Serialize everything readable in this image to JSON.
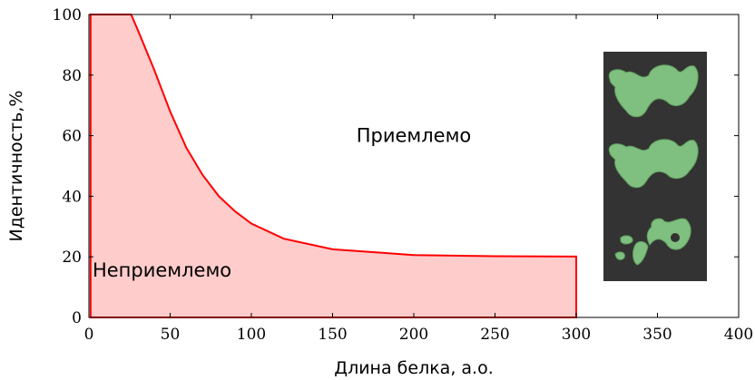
{
  "chart_data": {
    "type": "area",
    "title": "",
    "xlabel": "Длина белка, а.о.",
    "ylabel": "Идентичность,%",
    "xlim": [
      0,
      400
    ],
    "ylim": [
      0,
      100
    ],
    "xticks": [
      0,
      50,
      100,
      150,
      200,
      250,
      300,
      350,
      400
    ],
    "yticks": [
      0,
      20,
      40,
      60,
      80,
      100
    ],
    "grid": false,
    "series": [
      {
        "x": [
          1,
          26,
          30,
          40,
          50,
          60,
          70,
          80,
          90,
          100,
          120,
          150,
          200,
          250,
          300,
          300,
          1
        ],
        "y": [
          100,
          100,
          95,
          82,
          68,
          56,
          47,
          40,
          35,
          31,
          26,
          22.5,
          20.6,
          20.2,
          20.1,
          0,
          0
        ],
        "color": "#ff0000",
        "fill": "#ffcccc"
      }
    ],
    "annotations": [
      {
        "text": "Приемлемо",
        "x": 200,
        "y": 60
      },
      {
        "text": "Неприемлемо",
        "x": 45,
        "y": 15.5
      }
    ],
    "inset": {
      "description": "protein surface renders",
      "background": "#333333",
      "shape_color": "#7fbf7f",
      "count": 3
    }
  }
}
